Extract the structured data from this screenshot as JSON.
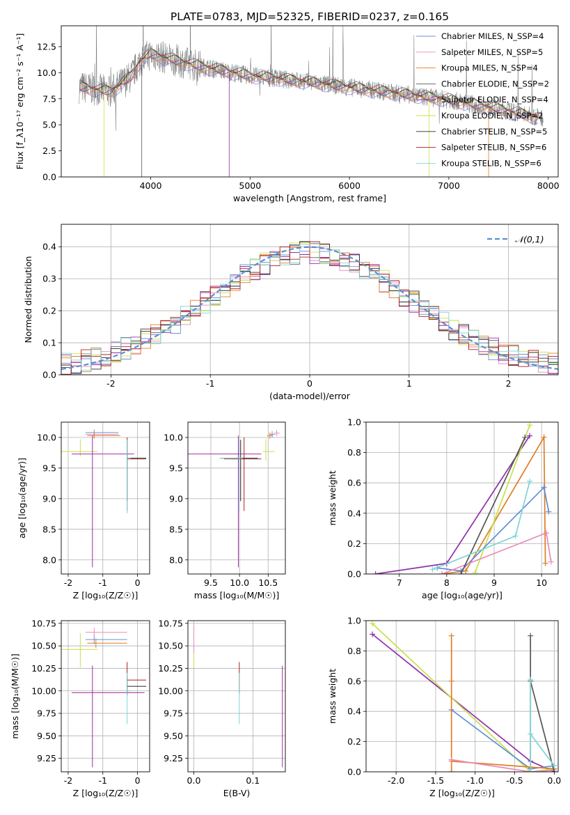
{
  "figure": {
    "title": "PLATE=0783, MJD=52325, FIBERID=0237, z=0.165"
  },
  "colors": {
    "model_series": [
      "#6a8fd6",
      "#e88ab9",
      "#e07d22",
      "#5a5a5a",
      "#a02aa0",
      "#c8e04a",
      "#2a2a2a",
      "#b01c1c",
      "#7fd4d4"
    ],
    "data_spectrum": "#808080",
    "gauss_curve": "#5b8ed6",
    "weight_plot_series": [
      "#8f2fa8",
      "#e07d22",
      "#c8e04a",
      "#5f8fd6",
      "#e88ab9",
      "#555555",
      "#7fd4d4"
    ]
  },
  "chart_data": [
    {
      "id": "spectrum",
      "type": "line",
      "xlabel": "wavelength [Angstrom, rest frame]",
      "ylabel": "Flux [f_λ10^-17 erg cm^-2 s^-1 A^-1]",
      "xlim": [
        3100,
        8100
      ],
      "ylim": [
        0,
        14.5
      ],
      "xticks": [
        4000,
        5000,
        6000,
        7000,
        8000
      ],
      "yticks": [
        0.0,
        2.5,
        5.0,
        7.5,
        10.0,
        12.5
      ],
      "grid": false,
      "legend_position": "top-right",
      "legend": [
        "Chabrier MILES, N_SSP=4",
        "Salpeter MILES, N_SSP=5",
        "Kroupa MILES, N_SSP=4",
        "Chabrier ELODIE, N_SSP=2",
        "Salpeter ELODIE, N_SSP=4",
        "Kroupa ELODIE, N_SSP=2",
        "Chabrier STELIB, N_SSP=5",
        "Salpeter STELIB, N_SSP=6",
        "Kroupa STELIB, N_SSP=6"
      ],
      "continuum_x": [
        3300,
        3600,
        3800,
        3900,
        4000,
        4200,
        4500,
        5000,
        5500,
        6000,
        6500,
        7000,
        7500,
        7900
      ],
      "continuum_y": [
        8.6,
        8.2,
        9.6,
        11.2,
        11.8,
        11.3,
        10.6,
        9.7,
        9.2,
        8.6,
        8.0,
        7.4,
        6.5,
        5.7
      ]
    },
    {
      "id": "residuals",
      "type": "histogram",
      "xlabel": "(data-model)/error",
      "ylabel": "Normed distribution",
      "xlim": [
        -2.5,
        2.5
      ],
      "ylim": [
        0,
        0.47
      ],
      "xticks": [
        -2,
        -1,
        0,
        1,
        2
      ],
      "yticks": [
        0.0,
        0.1,
        0.2,
        0.3,
        0.4
      ],
      "grid": true,
      "legend_position": "top-right",
      "legend": [
        "𝒩(0,1)"
      ],
      "bin_width": 0.1
    },
    {
      "id": "age_vs_Z",
      "type": "errorbar",
      "xlabel": "Z [log10(Z/Z☉)]",
      "ylabel": "age [log10(age/yr)]",
      "xlim": [
        -2.2,
        0.35
      ],
      "ylim": [
        7.77,
        10.25
      ],
      "xticks": [
        -2,
        -1,
        0
      ],
      "yticks": [
        8.0,
        8.5,
        9.0,
        9.5,
        10.0
      ],
      "grid": true,
      "points": [
        {
          "x": -1.65,
          "xerr": [
            0.55,
            0.5
          ],
          "y": 9.77,
          "yerr": [
            0.08,
            0.2
          ],
          "series": 5
        },
        {
          "x": -1.25,
          "xerr": [
            0.25,
            0.7
          ],
          "y": 10.08,
          "yerr": [
            0.05,
            0.05
          ],
          "series": 0
        },
        {
          "x": -1.25,
          "xerr": [
            0.25,
            0.7
          ],
          "y": 10.05,
          "yerr": [
            0.05,
            0.05
          ],
          "series": 1
        },
        {
          "x": -1.25,
          "xerr": [
            0.2,
            0.75
          ],
          "y": 10.03,
          "yerr": [
            0.05,
            0.05
          ],
          "series": 2
        },
        {
          "x": -1.3,
          "xerr": [
            0.6,
            1.2
          ],
          "y": 9.73,
          "yerr": [
            1.85,
            0.3
          ],
          "series": 4
        },
        {
          "x": -0.3,
          "xerr": [
            0.0,
            0.55
          ],
          "y": 9.65,
          "yerr": [
            0.85,
            0.35
          ],
          "series": 7
        },
        {
          "x": -0.3,
          "xerr": [
            0.0,
            0.55
          ],
          "y": 9.66,
          "yerr": [
            0.7,
            0.3
          ],
          "series": 6
        },
        {
          "x": -0.3,
          "xerr": [
            0.0,
            0.1
          ],
          "y": 9.66,
          "yerr": [
            0.9,
            0.3
          ],
          "series": 8
        }
      ]
    },
    {
      "id": "age_vs_mass",
      "type": "errorbar",
      "xlabel": "mass [log10(M/M☉)]",
      "ylabel": "",
      "xlim": [
        9.1,
        10.8
      ],
      "ylim": [
        7.77,
        10.25
      ],
      "xticks": [
        9.5,
        10.0,
        10.5
      ],
      "yticks": [
        8.0,
        8.5,
        9.0,
        9.5,
        10.0
      ],
      "grid": true,
      "points": [
        {
          "x": 9.98,
          "xerr": [
            0.88,
            0.4
          ],
          "y": 9.73,
          "yerr": [
            1.85,
            0.3
          ],
          "series": 4
        },
        {
          "x": 10.08,
          "xerr": [
            0.35,
            0.3
          ],
          "y": 9.65,
          "yerr": [
            0.85,
            0.35
          ],
          "series": 7
        },
        {
          "x": 10.02,
          "xerr": [
            0.35,
            0.3
          ],
          "y": 9.66,
          "yerr": [
            0.7,
            0.3
          ],
          "series": 6
        },
        {
          "x": 10.0,
          "xerr": [
            0.35,
            0.05
          ],
          "y": 9.66,
          "yerr": [
            0.9,
            0.3
          ],
          "series": 8
        },
        {
          "x": 10.46,
          "xerr": [
            0.05,
            0.15
          ],
          "y": 9.77,
          "yerr": [
            0.15,
            0.2
          ],
          "series": 5
        },
        {
          "x": 10.57,
          "xerr": [
            0.05,
            0.05
          ],
          "y": 10.05,
          "yerr": [
            0.05,
            0.05
          ],
          "series": 0
        },
        {
          "x": 10.65,
          "xerr": [
            0.05,
            0.05
          ],
          "y": 10.07,
          "yerr": [
            0.05,
            0.05
          ],
          "series": 1
        },
        {
          "x": 10.53,
          "xerr": [
            0.05,
            0.05
          ],
          "y": 10.03,
          "yerr": [
            0.05,
            0.05
          ],
          "series": 2
        }
      ]
    },
    {
      "id": "weight_vs_age",
      "type": "line",
      "xlabel": "age [log10(age/yr)]",
      "ylabel": "mass weight",
      "xlim": [
        6.3,
        10.35
      ],
      "ylim": [
        0,
        1.0
      ],
      "xticks": [
        7,
        8,
        9,
        10
      ],
      "yticks": [
        0.0,
        0.2,
        0.4,
        0.6,
        0.8,
        1.0
      ],
      "grid": true,
      "series": [
        {
          "color_index": 0,
          "x": [
            6.5,
            8.0,
            9.75
          ],
          "y": [
            0.0,
            0.07,
            0.91
          ]
        },
        {
          "color_index": 1,
          "x": [
            7.9,
            8.4,
            10.05,
            10.08
          ],
          "y": [
            0.0,
            0.02,
            0.9,
            0.07
          ]
        },
        {
          "color_index": 2,
          "x": [
            8.6,
            9.75
          ],
          "y": [
            0.01,
            0.98
          ]
        },
        {
          "color_index": 3,
          "x": [
            7.8,
            8.3,
            10.05,
            10.15
          ],
          "y": [
            0.04,
            0.02,
            0.57,
            0.41
          ]
        },
        {
          "color_index": 4,
          "x": [
            7.9,
            10.1,
            10.2
          ],
          "y": [
            0.0,
            0.27,
            0.08
          ]
        },
        {
          "color_index": 5,
          "x": [
            8.3,
            9.65
          ],
          "y": [
            0.0,
            0.9
          ]
        },
        {
          "color_index": 6,
          "x": [
            7.7,
            9.45,
            9.75
          ],
          "y": [
            0.03,
            0.25,
            0.61
          ]
        }
      ]
    },
    {
      "id": "mass_vs_Z",
      "type": "errorbar",
      "xlabel": "Z [log10(Z/Z☉)]",
      "ylabel": "mass [log10(M/M☉)]",
      "xlim": [
        -2.2,
        0.35
      ],
      "ylim": [
        9.1,
        10.78
      ],
      "xticks": [
        -2,
        -1,
        0
      ],
      "yticks": [
        9.25,
        9.5,
        9.75,
        10.0,
        10.25,
        10.5,
        10.75
      ],
      "grid": true,
      "points": [
        {
          "x": -1.65,
          "xerr": [
            0.55,
            0.5
          ],
          "y": 10.46,
          "yerr": [
            0.2,
            0.18
          ],
          "series": 5
        },
        {
          "x": -1.25,
          "xerr": [
            0.25,
            0.95
          ],
          "y": 10.57,
          "yerr": [
            0.05,
            0.05
          ],
          "series": 0
        },
        {
          "x": -1.25,
          "xerr": [
            0.25,
            0.95
          ],
          "y": 10.65,
          "yerr": [
            0.05,
            0.05
          ],
          "series": 1
        },
        {
          "x": -1.2,
          "xerr": [
            0.25,
            0.9
          ],
          "y": 10.53,
          "yerr": [
            0.05,
            0.05
          ],
          "series": 2
        },
        {
          "x": -1.3,
          "xerr": [
            0.6,
            1.5
          ],
          "y": 9.98,
          "yerr": [
            0.83,
            0.3
          ],
          "series": 4
        },
        {
          "x": -0.3,
          "xerr": [
            0.0,
            0.55
          ],
          "y": 10.12,
          "yerr": [
            0.15,
            0.2
          ],
          "series": 7
        },
        {
          "x": -0.3,
          "xerr": [
            0.0,
            0.55
          ],
          "y": 10.05,
          "yerr": [
            0.1,
            0.1
          ],
          "series": 6
        },
        {
          "x": -0.3,
          "xerr": [
            0.0,
            0.1
          ],
          "y": 10.0,
          "yerr": [
            0.37,
            0.2
          ],
          "series": 8
        }
      ]
    },
    {
      "id": "mass_vs_EBV",
      "type": "errorbar",
      "xlabel": "E(B-V)",
      "ylabel": "",
      "xlim": [
        -0.01,
        0.155
      ],
      "ylim": [
        9.1,
        10.78
      ],
      "xticks": [
        0.0,
        0.1
      ],
      "yticks": [
        9.25,
        9.5,
        9.75,
        10.0,
        10.25,
        10.5,
        10.75
      ],
      "grid": true,
      "points": [
        {
          "x": 0.0,
          "xerr": [
            0.0,
            0.0
          ],
          "y": 10.46,
          "yerr": [
            0.2,
            0.18
          ],
          "series": 5
        },
        {
          "x": 0.0,
          "xerr": [
            0.0,
            0.0
          ],
          "y": 10.57,
          "yerr": [
            0.15,
            0.15
          ],
          "series": 1
        },
        {
          "x": 0.077,
          "xerr": [
            0.0,
            0.0
          ],
          "y": 10.12,
          "yerr": [
            0.15,
            0.2
          ],
          "series": 7
        },
        {
          "x": 0.077,
          "xerr": [
            0.0,
            0.0
          ],
          "y": 10.0,
          "yerr": [
            0.37,
            0.2
          ],
          "series": 8
        },
        {
          "x": 0.15,
          "xerr": [
            0.0,
            0.0
          ],
          "y": 9.98,
          "yerr": [
            0.83,
            0.3
          ],
          "series": 4
        }
      ]
    },
    {
      "id": "weight_vs_Z",
      "type": "line",
      "xlabel": "Z [log10(Z/Z☉)]",
      "ylabel": "mass weight",
      "xlim": [
        -2.38,
        0.05
      ],
      "ylim": [
        0,
        1.0
      ],
      "xticks": [
        -2.0,
        -1.5,
        -1.0,
        -0.5,
        0.0
      ],
      "yticks": [
        0.0,
        0.2,
        0.4,
        0.6,
        0.8,
        1.0
      ],
      "grid": true,
      "series": [
        {
          "color_index": 0,
          "x": [
            -2.3,
            -0.3,
            0.0
          ],
          "y": [
            0.91,
            0.07,
            0.0
          ]
        },
        {
          "color_index": 2,
          "x": [
            -2.3,
            -0.3,
            0.0
          ],
          "y": [
            0.98,
            0.0,
            0.02
          ]
        },
        {
          "color_index": 3,
          "x": [
            -1.3,
            -0.3,
            0.0
          ],
          "y": [
            0.41,
            0.02,
            0.04
          ]
        },
        {
          "color_index": 1,
          "x": [
            -1.3,
            -1.3,
            -1.3,
            -1.3,
            0.0
          ],
          "y": [
            0.0,
            0.9,
            0.6,
            0.07,
            0.02
          ]
        },
        {
          "color_index": 4,
          "x": [
            -1.3,
            -0.3,
            0.0
          ],
          "y": [
            0.08,
            0.0,
            0.01
          ]
        },
        {
          "color_index": 5,
          "x": [
            -0.3,
            -0.3,
            -0.3,
            0.0
          ],
          "y": [
            0.0,
            0.9,
            0.6,
            0.0
          ]
        },
        {
          "color_index": 6,
          "x": [
            -0.3,
            -0.3,
            -0.3,
            0.0
          ],
          "y": [
            0.0,
            0.61,
            0.25,
            0.04
          ]
        }
      ]
    }
  ]
}
